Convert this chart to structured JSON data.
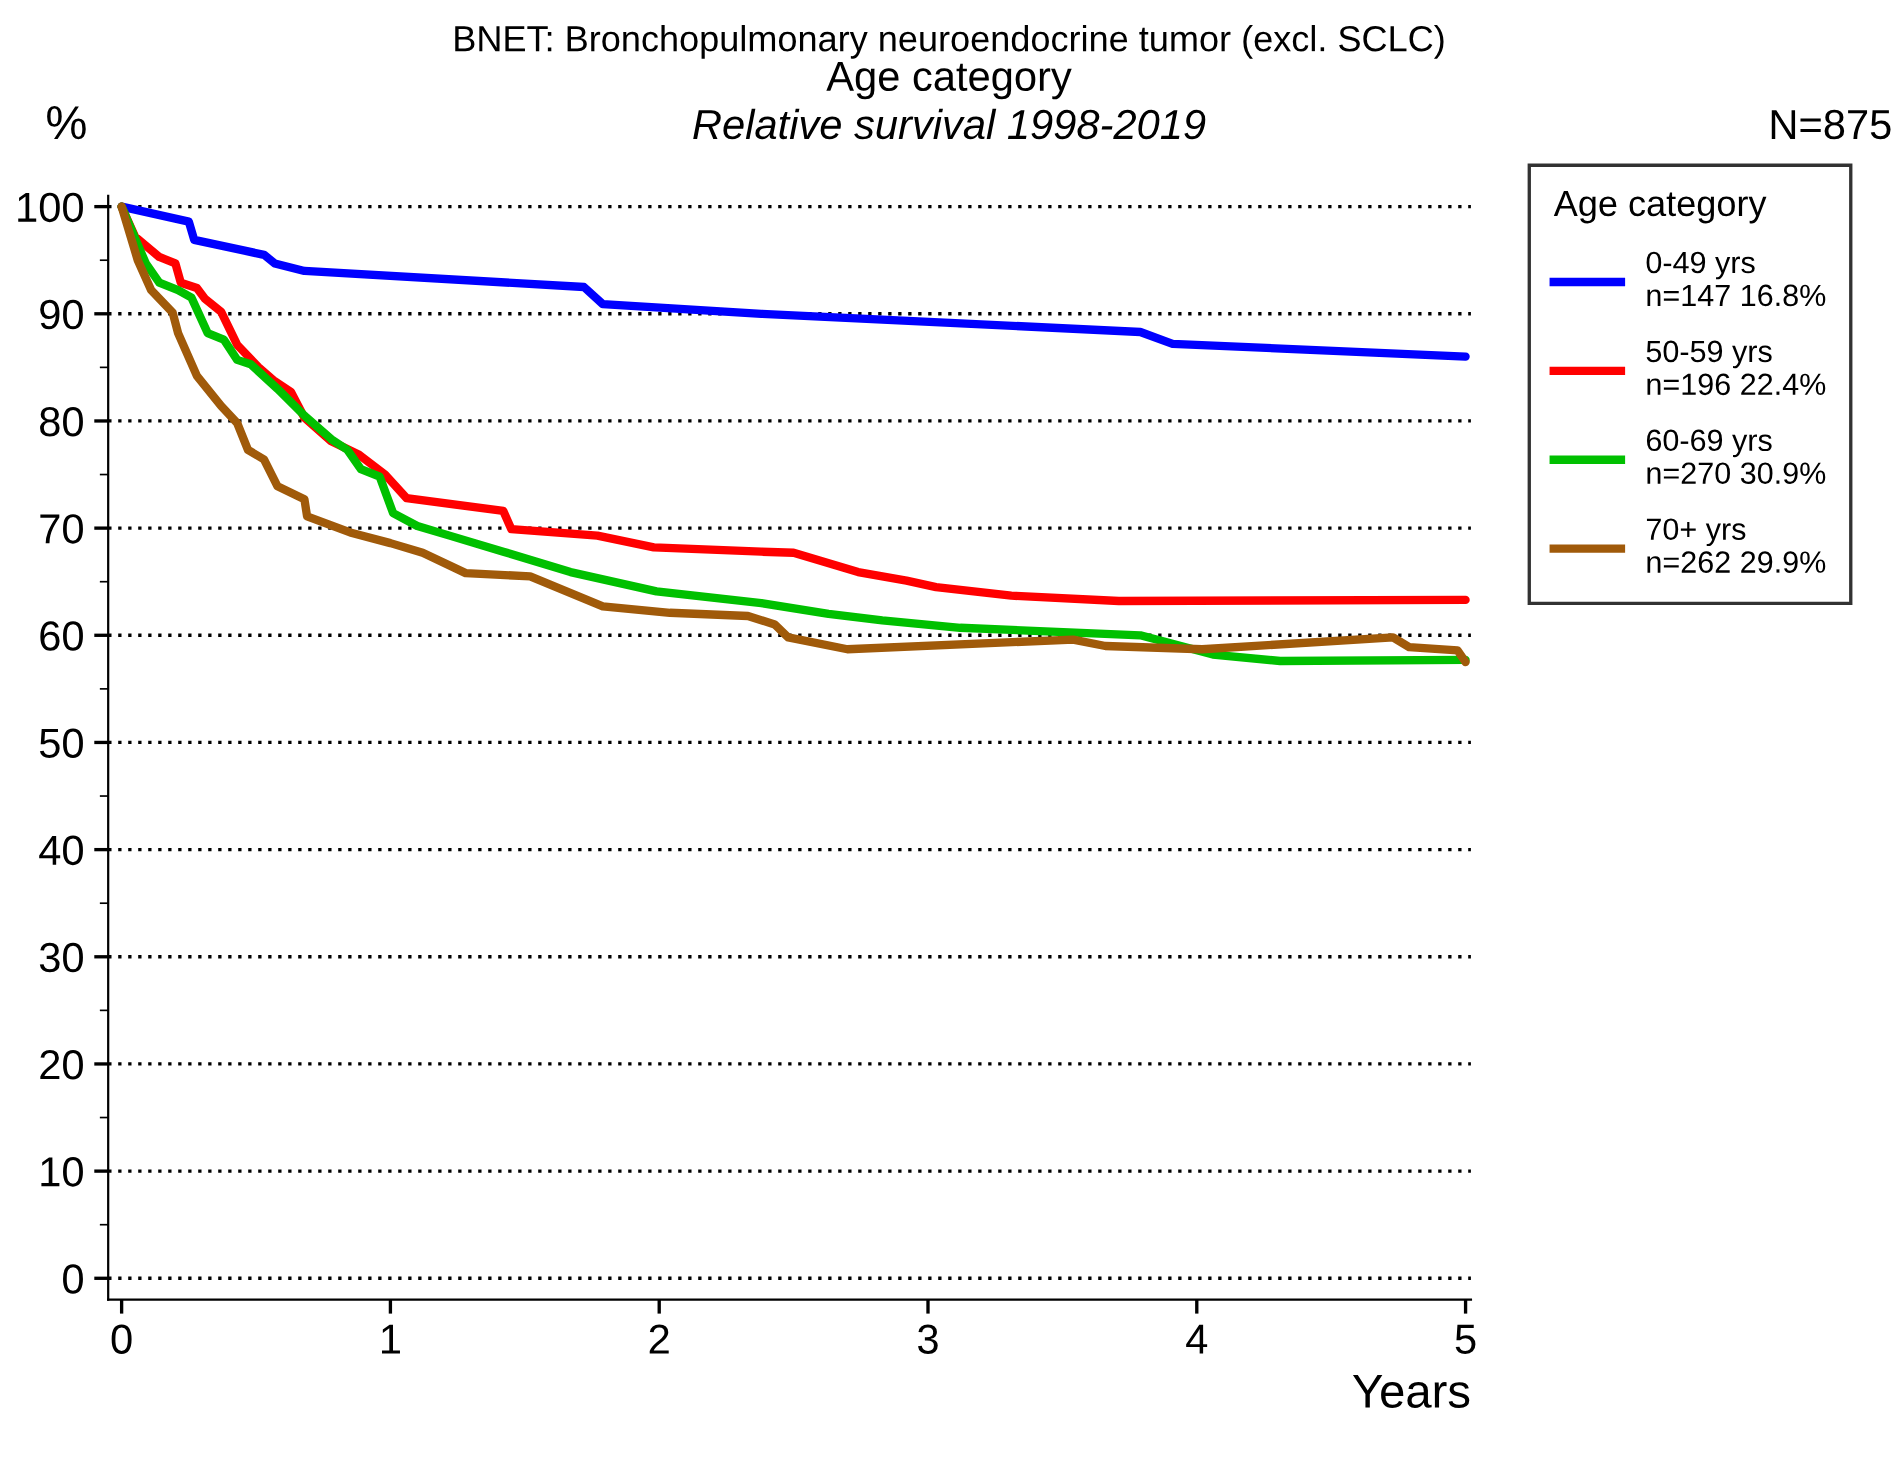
{
  "chart_data": {
    "type": "line",
    "title": "BNET: Bronchopulmonary neuroendocrine tumor (excl. SCLC)",
    "subtitle": "Age category",
    "annotations": [
      "Relative survival 1998-2019",
      "N=875"
    ],
    "xlabel": "Years",
    "ylabel": "%",
    "legend_title": "Age category",
    "legend": "right",
    "grid": "y",
    "line_style": "solid",
    "marker": "none",
    "xlim": [
      -0.05,
      5.02
    ],
    "ylim": [
      -2,
      101
    ],
    "xticks": [
      0,
      1,
      2,
      3,
      4,
      5
    ],
    "yticks": [
      0,
      10,
      20,
      30,
      40,
      50,
      60,
      70,
      80,
      90,
      100
    ],
    "series": [
      {
        "name": "0-49 yrs\nn=147 16.8%",
        "color": "#0000ff",
        "x": [
          0,
          0.25,
          0.27,
          0.53,
          0.57,
          0.68,
          1.72,
          1.79,
          2.38,
          3.79,
          3.91,
          5.0
        ],
        "values": [
          100,
          98.6,
          96.9,
          95.5,
          94.7,
          94.0,
          92.5,
          90.9,
          90.0,
          88.3,
          87.2,
          86.0
        ]
      },
      {
        "name": "50-59 yrs\nn=196 22.4%",
        "color": "#ff0000",
        "x": [
          0,
          0.05,
          0.14,
          0.2,
          0.22,
          0.28,
          0.31,
          0.37,
          0.43,
          0.51,
          0.57,
          0.63,
          0.68,
          0.78,
          0.88,
          0.98,
          1.06,
          1.42,
          1.45,
          1.77,
          1.98,
          2.38,
          2.5,
          2.74,
          2.92,
          3.03,
          3.31,
          3.71,
          5.0
        ],
        "values": [
          100,
          97.2,
          95.3,
          94.7,
          92.9,
          92.4,
          91.4,
          90.2,
          87.1,
          85.0,
          83.7,
          82.7,
          80.3,
          78.1,
          76.9,
          75.0,
          72.8,
          71.6,
          69.9,
          69.3,
          68.2,
          67.8,
          67.7,
          65.9,
          65.1,
          64.5,
          63.7,
          63.2,
          63.3
        ]
      },
      {
        "name": "60-69 yrs\nn=270 30.9%",
        "color": "#00c000",
        "x": [
          0,
          0.09,
          0.14,
          0.21,
          0.26,
          0.32,
          0.38,
          0.43,
          0.48,
          0.58,
          0.68,
          0.78,
          0.84,
          0.89,
          0.96,
          1.01,
          1.1,
          1.22,
          1.42,
          1.67,
          1.99,
          2.38,
          2.63,
          2.83,
          3.12,
          3.79,
          4.06,
          4.31,
          5.0
        ],
        "values": [
          100,
          94.7,
          92.9,
          92.2,
          91.5,
          88.2,
          87.6,
          85.7,
          85.3,
          83.0,
          80.5,
          78.3,
          77.3,
          75.5,
          74.8,
          71.4,
          70.2,
          69.3,
          67.8,
          65.9,
          64.1,
          63.0,
          62.0,
          61.4,
          60.7,
          60.0,
          58.2,
          57.6,
          57.7
        ]
      },
      {
        "name": "70+ yrs\nn=262 29.9%",
        "color": "#a05a0a",
        "x": [
          0,
          0.06,
          0.11,
          0.19,
          0.21,
          0.28,
          0.37,
          0.43,
          0.47,
          0.53,
          0.58,
          0.68,
          0.69,
          0.85,
          1.0,
          1.12,
          1.28,
          1.52,
          1.79,
          2.04,
          2.33,
          2.43,
          2.48,
          2.7,
          3.54,
          3.66,
          4.02,
          4.73,
          4.79,
          4.97,
          5.0
        ],
        "values": [
          100,
          95.0,
          92.2,
          90.1,
          88.2,
          84.2,
          81.4,
          79.8,
          77.3,
          76.4,
          73.9,
          72.7,
          71.1,
          69.6,
          68.6,
          67.7,
          65.8,
          65.5,
          62.7,
          62.1,
          61.8,
          61.0,
          59.8,
          58.7,
          59.6,
          59.0,
          58.7,
          59.8,
          58.9,
          58.6,
          57.5
        ]
      }
    ]
  }
}
